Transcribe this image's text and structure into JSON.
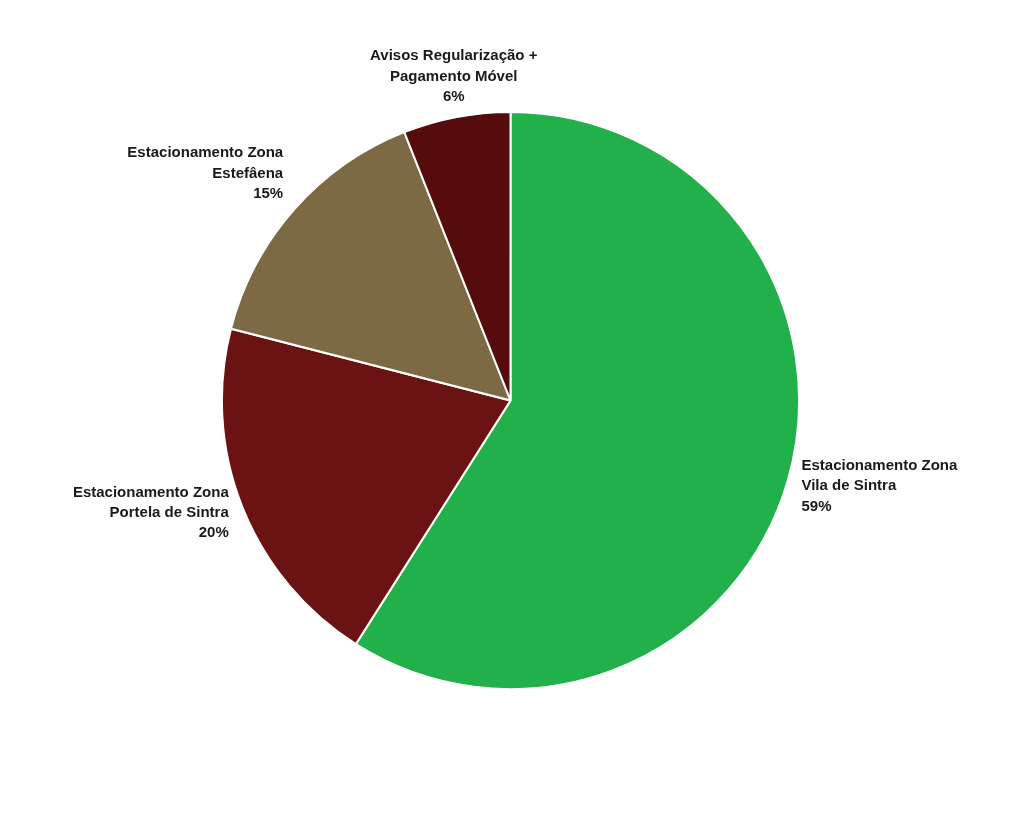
{
  "chart_data": {
    "type": "pie",
    "categories": [
      "Estacionamento Zona\nVila de Sintra",
      "Estacionamento Zona\nPortela de Sintra",
      "Estacionamento Zona\nEstefâena",
      "Avisos Regularização +\nPagamento Móvel"
    ],
    "values": [
      59,
      20,
      15,
      6
    ],
    "colors": [
      "#22b04a",
      "#6b1212",
      "#7d6a45",
      "#560c0c"
    ],
    "value_labels": [
      "59%",
      "20%",
      "15%",
      "6%"
    ]
  }
}
